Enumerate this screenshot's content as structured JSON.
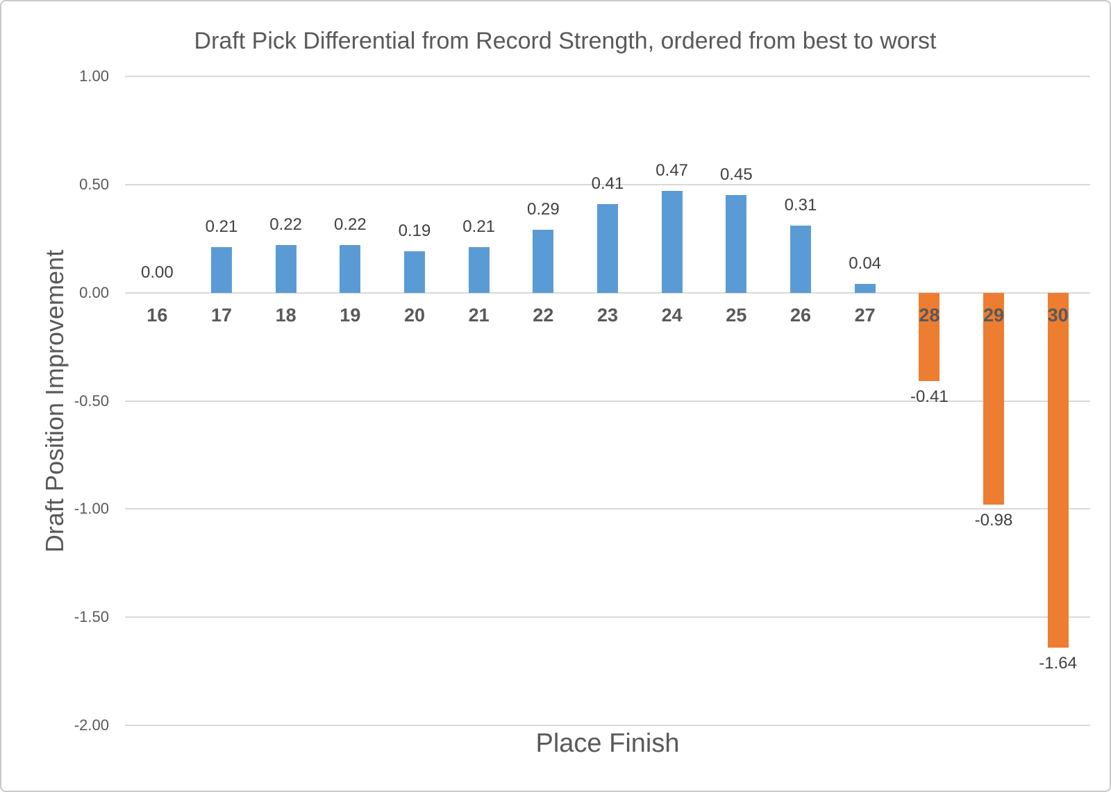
{
  "chart_data": {
    "type": "bar",
    "title": "Draft Pick Differential from Record Strength, ordered from best to worst",
    "xlabel": "Place Finish",
    "ylabel": "Draft Position Improvement",
    "categories": [
      "16",
      "17",
      "18",
      "19",
      "20",
      "21",
      "22",
      "23",
      "24",
      "25",
      "26",
      "27",
      "28",
      "29",
      "30"
    ],
    "values": [
      0.0,
      0.21,
      0.22,
      0.22,
      0.19,
      0.21,
      0.29,
      0.41,
      0.47,
      0.45,
      0.31,
      0.04,
      -0.41,
      -0.98,
      -1.64
    ],
    "value_labels": [
      "0.00",
      "0.21",
      "0.22",
      "0.22",
      "0.19",
      "0.21",
      "0.29",
      "0.41",
      "0.47",
      "0.45",
      "0.31",
      "0.04",
      "-0.41",
      "-0.98",
      "-1.64"
    ],
    "ylim": [
      -2.0,
      1.0
    ],
    "ytick_step": 0.5,
    "ytick_labels": [
      "1.00",
      "0.50",
      "0.00",
      "-0.50",
      "-1.00",
      "-1.50",
      "-2.00"
    ],
    "grid": true,
    "legend": "none",
    "data_label_position": "outside-end",
    "colors": {
      "positive_bar": "#5B9BD5",
      "negative_bar": "#ED7D31",
      "gridline": "#d9d9d9",
      "title_text": "#595959",
      "axis_text": "#595959",
      "data_label_text": "#404040"
    }
  }
}
